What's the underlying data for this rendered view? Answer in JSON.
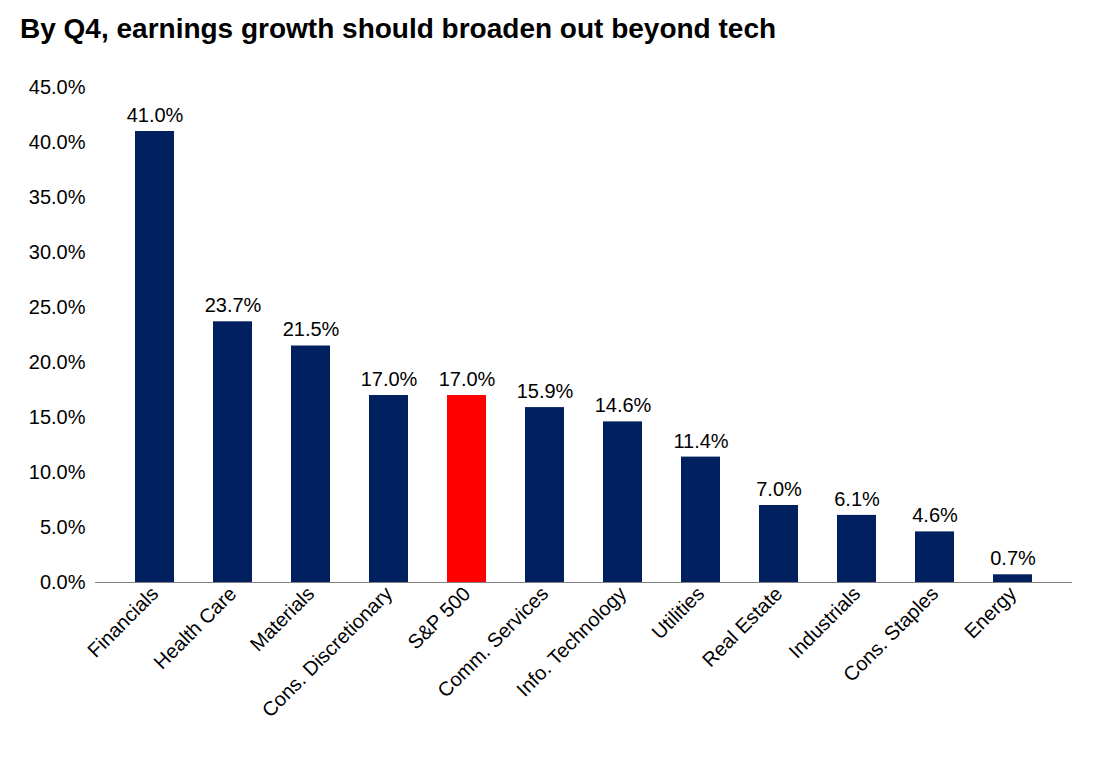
{
  "chart_data": {
    "type": "bar",
    "title": "By Q4, earnings growth should broaden out beyond tech",
    "categories": [
      "Financials",
      "Health Care",
      "Materials",
      "Cons. Discretionary",
      "S&P 500",
      "Comm. Services",
      "Info. Technology",
      "Utilities",
      "Real Estate",
      "Industrials",
      "Cons. Staples",
      "Energy"
    ],
    "values": [
      41.0,
      23.7,
      21.5,
      17.0,
      17.0,
      15.9,
      14.6,
      11.4,
      7.0,
      6.1,
      4.6,
      0.7
    ],
    "value_labels": [
      "41.0%",
      "23.7%",
      "21.5%",
      "17.0%",
      "17.0%",
      "15.9%",
      "14.6%",
      "11.4%",
      "7.0%",
      "6.1%",
      "4.6%",
      "0.7%"
    ],
    "colors": [
      "#002060",
      "#002060",
      "#002060",
      "#002060",
      "#ff0000",
      "#002060",
      "#002060",
      "#002060",
      "#002060",
      "#002060",
      "#002060",
      "#002060"
    ],
    "ylim": [
      0,
      45
    ],
    "yticks": [
      {
        "value": 0,
        "label": "0.0%"
      },
      {
        "value": 5,
        "label": "5.0%"
      },
      {
        "value": 10,
        "label": "10.0%"
      },
      {
        "value": 15,
        "label": "15.0%"
      },
      {
        "value": 20,
        "label": "20.0%"
      },
      {
        "value": 25,
        "label": "25.0%"
      },
      {
        "value": 30,
        "label": "30.0%"
      },
      {
        "value": 35,
        "label": "35.0%"
      },
      {
        "value": 40,
        "label": "40.0%"
      },
      {
        "value": 45,
        "label": "45.0%"
      }
    ],
    "grid": false,
    "data_labels": true
  }
}
